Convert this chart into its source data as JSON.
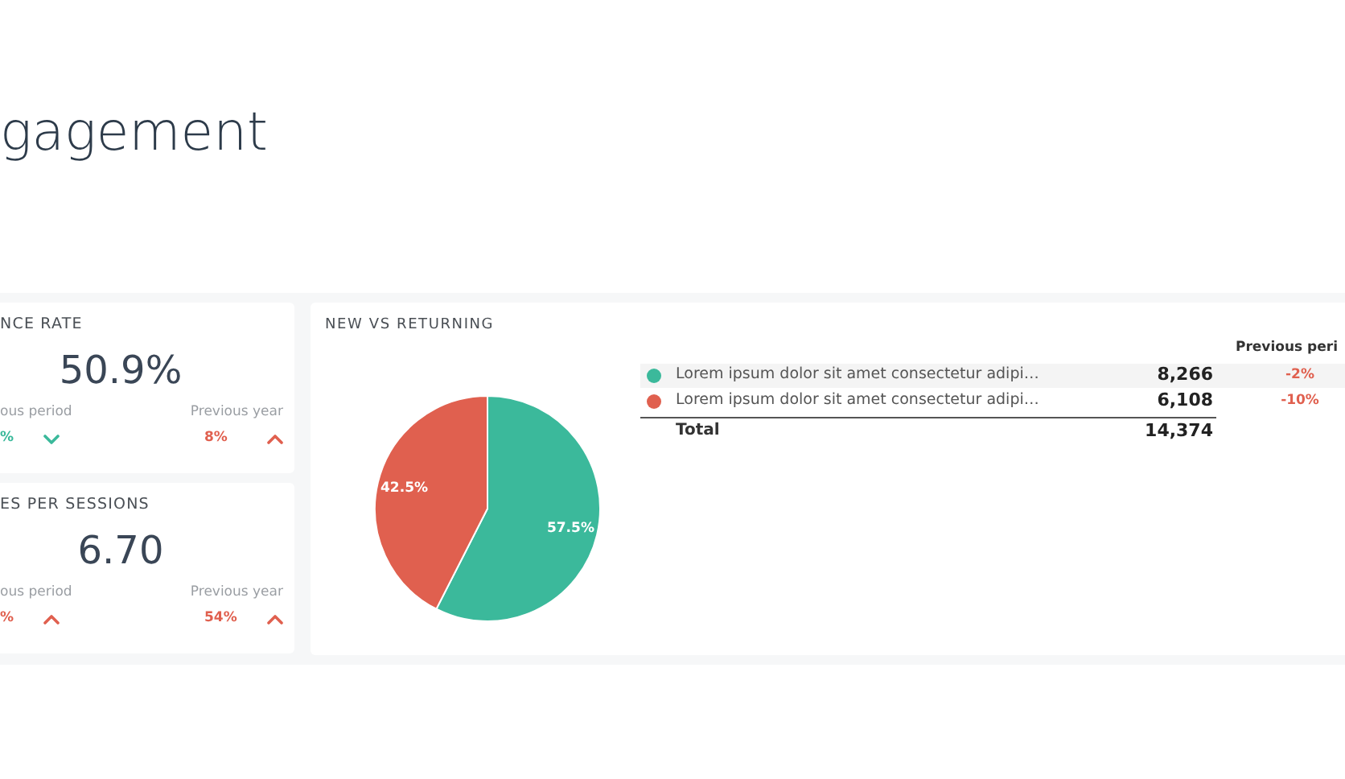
{
  "chart_data": [
    {
      "type": "other",
      "title": "gagement"
    },
    {
      "type": "other",
      "title": "NCE RATE",
      "annotations": [
        "50.9%",
        "ous period",
        "%",
        "Previous year",
        "8%"
      ]
    },
    {
      "type": "other",
      "title": "ES PER SESSIONS",
      "annotations": [
        "6.70",
        "ous period",
        "%",
        "Previous year",
        "54%"
      ]
    },
    {
      "type": "pie",
      "title": "NEW VS RETURNING",
      "categories": [
        "Lorem ipsum dolor sit amet consectetur adipi…",
        "Lorem ipsum dolor sit amet consectetur adipi…"
      ],
      "values": [
        57.5,
        42.5
      ],
      "colors": [
        "#3bb99b",
        "#e0604f"
      ],
      "value_labels": [
        "57.5%",
        "42.5%"
      ],
      "legend": "right",
      "annotations": [
        "Previous peri",
        "8,266",
        "6,108",
        "-2%",
        "-10%",
        "Total",
        "14,374"
      ]
    }
  ]
}
